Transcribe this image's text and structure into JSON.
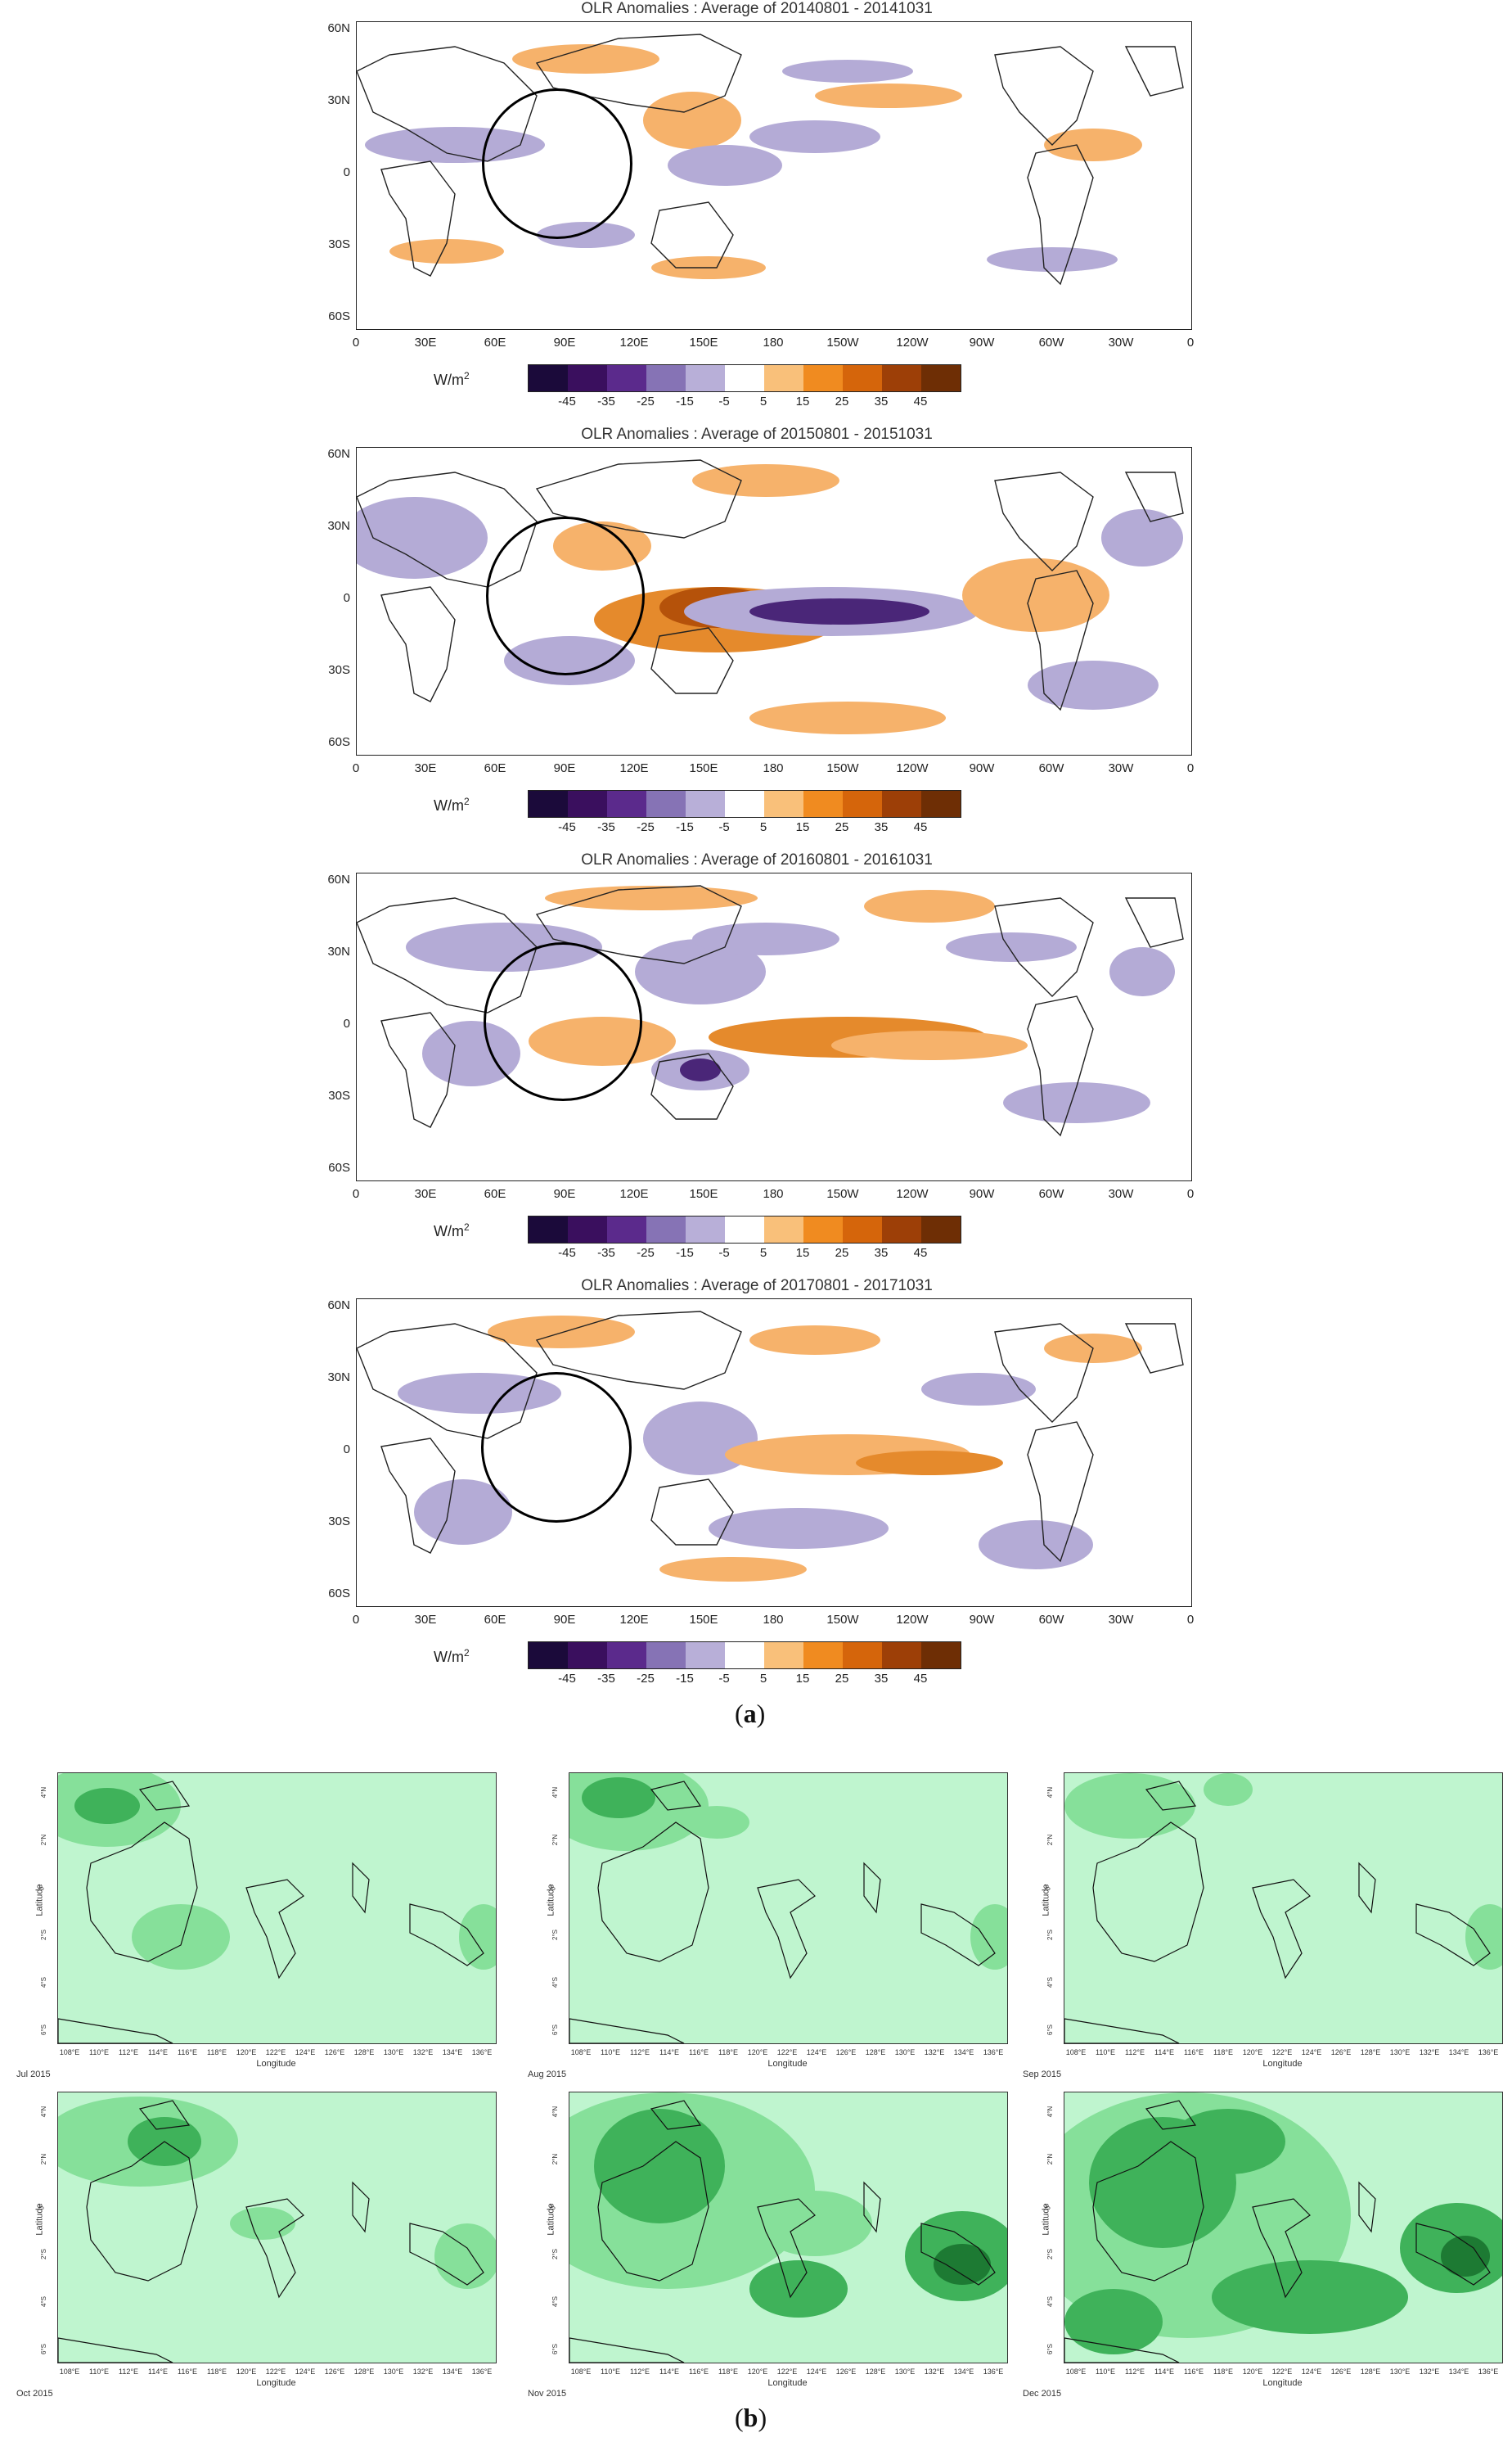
{
  "part_a": {
    "caption_label": "a",
    "unit": "W/m",
    "unit_sup": "2",
    "colorbar": {
      "colors": [
        "#1b0a3a",
        "#3a0f5e",
        "#5b2a8c",
        "#8673b5",
        "#b8afd8",
        "#ffffff",
        "#f9c07a",
        "#f08b20",
        "#d5650b",
        "#9d3f07",
        "#6e2e05"
      ],
      "ticks": [
        "-45",
        "-35",
        "-25",
        "-15",
        "-5",
        "5",
        "15",
        "25",
        "35",
        "45"
      ]
    },
    "lat_labels": [
      "60N",
      "30N",
      "0",
      "30S",
      "60S"
    ],
    "lon_labels": [
      "0",
      "30E",
      "60E",
      "90E",
      "120E",
      "150E",
      "180",
      "150W",
      "120W",
      "90W",
      "60W",
      "30W",
      "0"
    ],
    "panels": [
      {
        "title": "OLR Anomalies : Average of 20140801 - 20141031"
      },
      {
        "title": "OLR Anomalies : Average of 20150801 - 20151031"
      },
      {
        "title": "OLR Anomalies : Average of 20160801 - 20161031"
      },
      {
        "title": "OLR Anomalies : Average of 20170801 - 20171031"
      }
    ]
  },
  "part_b": {
    "caption_label": "b",
    "xlabel": "Longitude",
    "ylabel": "Latitude",
    "lon_labels": [
      "108°E",
      "110°E",
      "112°E",
      "114°E",
      "116°E",
      "118°E",
      "120°E",
      "122°E",
      "124°E",
      "126°E",
      "128°E",
      "130°E",
      "132°E",
      "134°E",
      "136°E"
    ],
    "lat_labels": [
      "4°N",
      "2°N",
      "0°",
      "2°S",
      "4°S",
      "6°S"
    ],
    "months": [
      "Jul 2015",
      "Aug 2015",
      "Sep 2015",
      "Oct 2015",
      "Nov 2015",
      "Dec 2015"
    ],
    "colors": {
      "background": "#bff5cf",
      "light": "#86e09a",
      "mid": "#3fb25a",
      "dark": "#1d7a33"
    }
  }
}
